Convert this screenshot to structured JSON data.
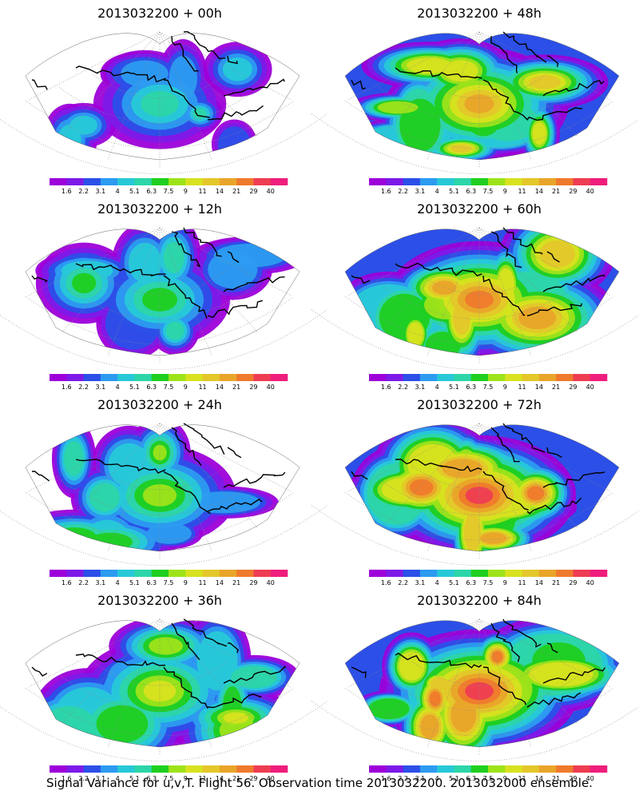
{
  "figure": {
    "caption": "Signal Variance for u,v,T. Flight 56. Observation time 2013032200. 2013032000 ensemble."
  },
  "colorbar": {
    "labels": [
      "1.6",
      "2.2",
      "3.1",
      "4",
      "5.1",
      "6.3",
      "7.5",
      "9",
      "11",
      "14",
      "21",
      "29",
      "40"
    ],
    "colors": [
      "#9d00d9",
      "#7d1ae8",
      "#2c4fe8",
      "#2c9bf0",
      "#27c9d8",
      "#2cd6a8",
      "#1fcf1f",
      "#9ee31a",
      "#d8e21f",
      "#e4c72a",
      "#e9a52a",
      "#ef7a2c",
      "#ee3d52",
      "#ef1e7c"
    ]
  },
  "panels": [
    {
      "title": "2013032200 + 00h",
      "lead": "00h",
      "intensity": 0.22
    },
    {
      "title": "2013032200 + 48h",
      "lead": "48h",
      "intensity": 0.7
    },
    {
      "title": "2013032200 + 12h",
      "lead": "12h",
      "intensity": 0.3
    },
    {
      "title": "2013032200 + 60h",
      "lead": "60h",
      "intensity": 0.78
    },
    {
      "title": "2013032200 + 24h",
      "lead": "24h",
      "intensity": 0.42
    },
    {
      "title": "2013032200 + 72h",
      "lead": "72h",
      "intensity": 0.85
    },
    {
      "title": "2013032200 + 36h",
      "lead": "36h",
      "intensity": 0.52
    },
    {
      "title": "2013032200 + 84h",
      "lead": "84h",
      "intensity": 0.92
    }
  ]
}
